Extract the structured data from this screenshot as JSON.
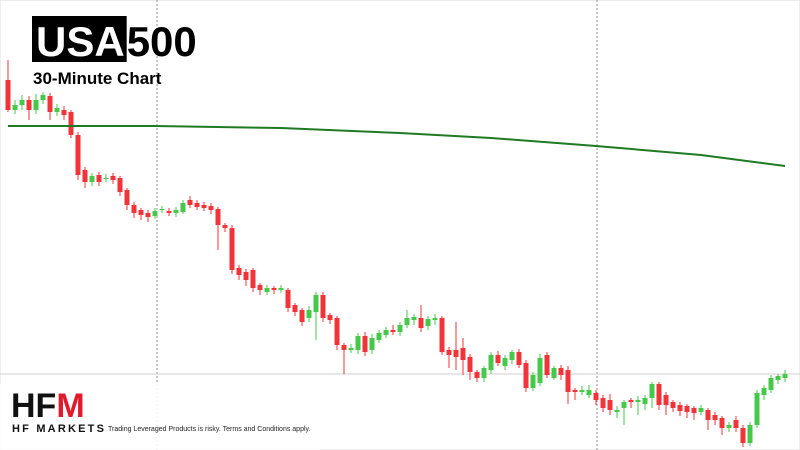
{
  "chart_data": {
    "type": "candlestick",
    "title_highlight": "USA",
    "title_rest": "500",
    "subtitle": "30-Minute Chart",
    "logo_main": "HF",
    "logo_accent": "M",
    "logo_caption": "HF MARKETS",
    "disclaimer": "Trading Leveraged Products is risky. Terms and Conditions apply.",
    "up_color": "#46c84a",
    "down_color": "#f0343a",
    "ylim": [
      0,
      450
    ],
    "open": [
      370,
      340,
      345,
      350,
      340,
      350,
      354,
      338,
      340,
      338,
      315,
      280,
      268,
      275,
      272,
      274,
      272,
      260,
      245,
      240,
      237,
      234,
      240,
      239,
      237,
      238,
      250,
      247,
      245,
      244,
      241,
      225,
      222,
      182,
      178,
      180,
      165,
      158,
      162,
      160,
      160,
      145,
      140,
      132,
      138,
      155,
      135,
      132,
      105,
      100,
      100,
      114,
      100,
      110,
      115,
      120,
      118,
      125,
      130,
      132,
      124,
      130,
      132,
      100,
      100,
      102,
      93,
      78,
      72,
      80,
      95,
      84,
      90,
      98,
      87,
      62,
      67,
      95,
      72,
      82,
      80,
      60,
      58,
      55,
      57,
      52,
      50,
      38,
      42,
      50,
      48,
      46,
      52,
      66,
      55,
      48,
      45,
      44,
      42,
      38,
      40,
      35,
      32,
      22,
      30,
      22,
      7,
      25,
      55,
      60,
      70,
      72
    ],
    "high": [
      390,
      350,
      355,
      354,
      356,
      358,
      357,
      346,
      344,
      340,
      318,
      283,
      277,
      278,
      276,
      277,
      274,
      262,
      248,
      242,
      240,
      242,
      244,
      242,
      243,
      250,
      254,
      250,
      248,
      247,
      243,
      227,
      225,
      185,
      181,
      182,
      167,
      165,
      164,
      165,
      162,
      147,
      142,
      144,
      158,
      158,
      137,
      134,
      107,
      106,
      117,
      118,
      116,
      120,
      123,
      125,
      128,
      140,
      136,
      145,
      134,
      136,
      134,
      103,
      128,
      112,
      96,
      80,
      84,
      98,
      99,
      95,
      100,
      101,
      90,
      78,
      96,
      98,
      84,
      85,
      84,
      62,
      64,
      65,
      60,
      55,
      56,
      44,
      50,
      52,
      54,
      55,
      68,
      68,
      58,
      50,
      48,
      46,
      44,
      45,
      42,
      38,
      34,
      28,
      34,
      25,
      28,
      60,
      65,
      75,
      76,
      80
    ],
    "low": [
      338,
      336,
      340,
      330,
      336,
      346,
      330,
      334,
      330,
      312,
      270,
      262,
      264,
      264,
      268,
      266,
      254,
      240,
      232,
      230,
      228,
      231,
      237,
      234,
      233,
      236,
      242,
      240,
      239,
      236,
      200,
      218,
      176,
      170,
      164,
      158,
      155,
      155,
      156,
      157,
      138,
      134,
      124,
      128,
      110,
      128,
      126,
      100,
      76,
      97,
      96,
      94,
      96,
      107,
      112,
      115,
      114,
      122,
      125,
      118,
      120,
      125,
      95,
      82,
      80,
      75,
      70,
      68,
      68,
      76,
      84,
      80,
      86,
      82,
      58,
      59,
      64,
      72,
      70,
      70,
      46,
      50,
      55,
      52,
      45,
      38,
      35,
      32,
      25,
      42,
      35,
      40,
      42,
      40,
      35,
      38,
      34,
      32,
      30,
      35,
      20,
      25,
      15,
      18,
      18,
      3,
      4,
      22,
      50,
      57,
      66,
      68
    ],
    "close": [
      340,
      345,
      350,
      340,
      350,
      355,
      338,
      342,
      335,
      315,
      275,
      268,
      274,
      268,
      272,
      270,
      258,
      245,
      237,
      235,
      233,
      239,
      241,
      237,
      240,
      247,
      245,
      243,
      242,
      240,
      225,
      222,
      180,
      175,
      170,
      162,
      160,
      162,
      160,
      162,
      142,
      138,
      128,
      140,
      155,
      132,
      130,
      105,
      100,
      102,
      114,
      98,
      112,
      117,
      120,
      118,
      125,
      132,
      133,
      122,
      131,
      132,
      98,
      95,
      93,
      90,
      78,
      72,
      82,
      95,
      87,
      92,
      98,
      85,
      62,
      75,
      92,
      75,
      82,
      75,
      58,
      58,
      60,
      60,
      50,
      42,
      40,
      40,
      48,
      48,
      50,
      52,
      66,
      45,
      45,
      42,
      39,
      38,
      37,
      42,
      30,
      30,
      22,
      25,
      22,
      7,
      25,
      57,
      62,
      72,
      74,
      76
    ],
    "moving_average": {
      "color": "#1f7a22",
      "x": [
        1,
        22,
        40,
        57,
        70,
        85,
        100,
        112
      ],
      "values": [
        324,
        324,
        322,
        317,
        312,
        304,
        295,
        284
      ]
    }
  }
}
